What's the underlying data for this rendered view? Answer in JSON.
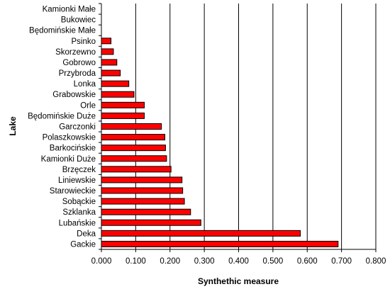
{
  "chart_data": {
    "type": "bar",
    "orientation": "horizontal",
    "xlabel": "Synthethic measure",
    "ylabel": "Lake",
    "xlim": [
      0,
      0.8
    ],
    "x_ticks": [
      "0.000",
      "0.100",
      "0.200",
      "0.300",
      "0.400",
      "0.500",
      "0.600",
      "0.700",
      "0.800"
    ],
    "grid": "vertical",
    "bar_color": "#ff0000",
    "bar_edge_color": "#000000",
    "categories": [
      "Kamionki Małe",
      "Bukowiec",
      "Będomińskie Małe",
      "Psinko",
      "Skorzewno",
      "Gobrowo",
      "Przybroda",
      "Lonka",
      "Grabowskie",
      "Orle",
      "Będomińskie Duże",
      "Garczonki",
      "Polaszkowskie",
      "Barkocińskie",
      "Kamionki Duże",
      "Brzęczek",
      "Liniewskie",
      "Starowieckie",
      "Sobąckie",
      "Szklanka",
      "Lubańskie",
      "Deka",
      "Gackie"
    ],
    "values": [
      0.0,
      0.0,
      0.0,
      0.028,
      0.035,
      0.045,
      0.055,
      0.08,
      0.095,
      0.125,
      0.125,
      0.175,
      0.185,
      0.187,
      0.19,
      0.203,
      0.235,
      0.237,
      0.242,
      0.26,
      0.29,
      0.58,
      0.69
    ]
  }
}
